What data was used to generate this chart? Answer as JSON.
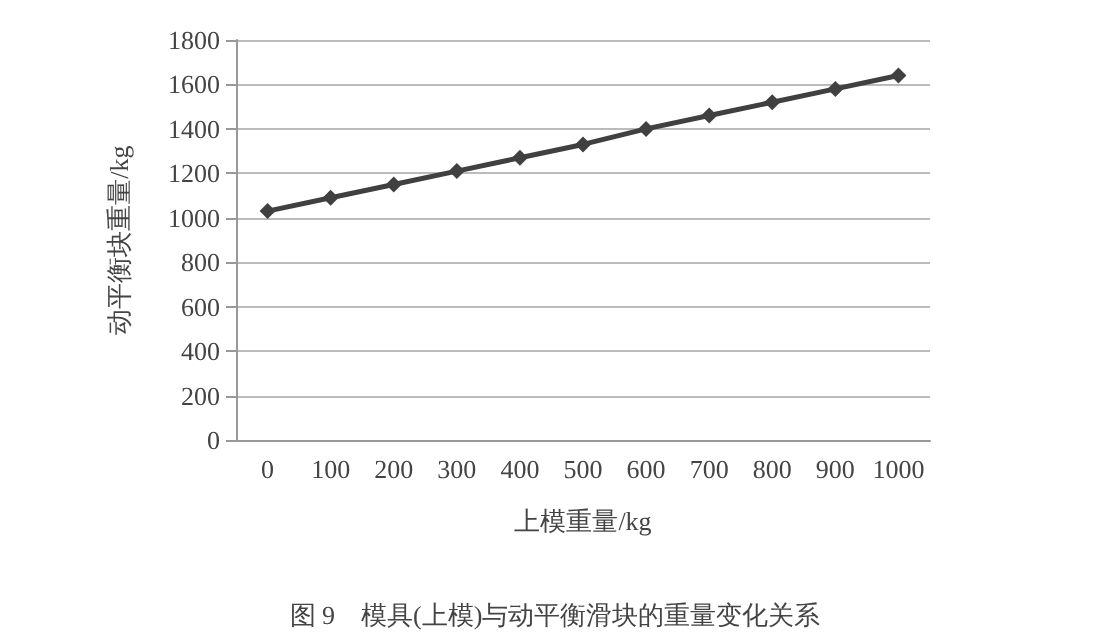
{
  "chart_data": {
    "type": "line",
    "xlabel": "上模重量/kg",
    "ylabel": "动平衡块重量/kg",
    "annotations": [
      "图 9　模具(上模)与动平衡滑块的重量变化关系"
    ],
    "categories": [
      "0",
      "100",
      "200",
      "300",
      "400",
      "500",
      "600",
      "700",
      "800",
      "900",
      "1000"
    ],
    "series": [
      {
        "color": "#404040",
        "values": [
          1030,
          1090,
          1150,
          1210,
          1270,
          1330,
          1400,
          1460,
          1520,
          1580,
          1640
        ]
      }
    ],
    "ylim": [
      0,
      1800
    ],
    "yticks": [
      0,
      200,
      400,
      600,
      800,
      1000,
      1200,
      1400,
      1600,
      1800
    ],
    "grid": "y",
    "marker": "diamond",
    "line_style": "solid"
  }
}
